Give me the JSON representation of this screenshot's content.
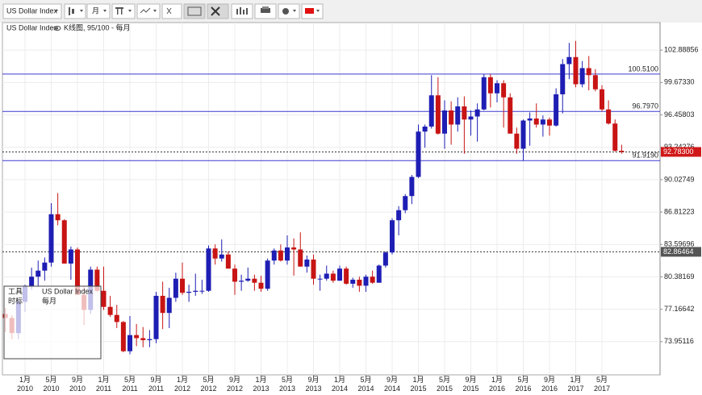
{
  "toolbar": {
    "symbol": "US Dollar Index",
    "period": "月"
  },
  "header": {
    "symbol": "US Dollar Index",
    "info": "K线图, 95/100 - 每月"
  },
  "overlay": {
    "tools": "工具",
    "timescale": "时标",
    "symbol": "US Dollar Index",
    "period": "每月"
  },
  "chart_data": {
    "type": "candlestick",
    "categories": [
      null,
      null,
      null,
      "1月\n2010",
      null,
      null,
      null,
      "5月\n2010",
      null,
      null,
      null,
      "9月\n2010",
      null,
      null,
      null,
      "1月\n2011",
      null,
      null,
      null,
      "5月\n2011",
      null,
      null,
      null,
      "9月\n2011",
      null,
      null,
      null,
      "1月\n2012",
      null,
      null,
      null,
      "5月\n2012",
      null,
      null,
      null,
      "9月\n2012",
      null,
      null,
      null,
      "1月\n2013",
      null,
      null,
      null,
      "5月\n2013",
      null,
      null,
      null,
      "9月\n2013",
      null,
      null,
      null,
      "1月\n2014",
      null,
      null,
      null,
      "5月\n2014",
      null,
      null,
      null,
      "9月\n2014",
      null,
      null,
      null,
      "1月\n2015",
      null,
      null,
      null,
      "5月\n2015",
      null,
      null,
      null,
      "9月\n2015",
      null,
      null,
      null,
      "1月\n2016",
      null,
      null,
      null,
      "5月\n2016",
      null,
      null,
      null,
      "9月\n2016",
      null,
      null,
      null,
      "1月\n2017",
      null,
      null,
      null,
      "5月\n2017",
      null,
      null,
      null
    ],
    "open": [
      76.7,
      76.3,
      74.8,
      77.9,
      79.5,
      80.4,
      81.0,
      81.8,
      86.6,
      86.0,
      81.7,
      83.1,
      78.6,
      77.1,
      81.1,
      79.0,
      77.4,
      76.6,
      75.9,
      73.0,
      74.6,
      74.3,
      74.1,
      74.2,
      78.5,
      76.8,
      78.3,
      80.2,
      78.8,
      78.9,
      79.0,
      79.0,
      83.2,
      82.2,
      82.6,
      81.2,
      79.9,
      80.0,
      80.2,
      79.8,
      79.2,
      82.0,
      83.0,
      82.0,
      83.3,
      83.1,
      81.4,
      82.1,
      80.2,
      80.2,
      80.7,
      80.0,
      81.2,
      79.7,
      80.1,
      79.5,
      80.4,
      79.8,
      81.5,
      82.8,
      86.0,
      87.0,
      88.4,
      90.3,
      94.8,
      95.3,
      98.4,
      94.6,
      96.9,
      95.5,
      97.3,
      96.0,
      96.3,
      97.0,
      100.2,
      98.6,
      99.6,
      98.2,
      94.6,
      93.1,
      95.9,
      96.1,
      95.5,
      96.0,
      95.4,
      98.5,
      101.5,
      102.2,
      99.5,
      101.1,
      100.4,
      99.0,
      97.0,
      95.6,
      92.9
    ],
    "high": [
      77.3,
      76.6,
      78.2,
      79.6,
      81.3,
      82.0,
      82.3,
      87.7,
      88.7,
      86.1,
      83.4,
      83.3,
      79.4,
      81.4,
      81.4,
      81.4,
      78.5,
      77.6,
      76.0,
      76.5,
      75.7,
      75.4,
      75.1,
      78.9,
      79.9,
      79.3,
      80.8,
      81.8,
      79.6,
      80.7,
      80.1,
      83.5,
      83.6,
      84.1,
      82.9,
      81.6,
      80.6,
      81.3,
      80.6,
      80.5,
      82.2,
      83.2,
      83.6,
      84.5,
      84.2,
      84.8,
      82.5,
      82.6,
      80.6,
      81.5,
      81.0,
      81.5,
      81.4,
      80.3,
      80.4,
      80.6,
      81.0,
      81.6,
      82.9,
      86.2,
      87.4,
      88.6,
      90.5,
      95.5,
      95.5,
      100.4,
      100.2,
      97.9,
      97.8,
      98.2,
      98.3,
      96.9,
      97.6,
      100.5,
      100.5,
      99.9,
      99.9,
      98.6,
      95.2,
      96.0,
      96.7,
      97.6,
      96.4,
      96.2,
      99.1,
      102.0,
      103.6,
      103.8,
      101.8,
      102.3,
      101.0,
      99.4,
      97.9,
      96.0,
      93.5
    ],
    "low": [
      74.9,
      74.2,
      74.2,
      76.9,
      79.1,
      79.5,
      80.0,
      81.4,
      85.5,
      81.7,
      80.1,
      78.6,
      75.6,
      76.7,
      78.9,
      77.1,
      76.4,
      75.3,
      72.9,
      72.7,
      73.5,
      73.4,
      73.4,
      73.8,
      75.2,
      75.3,
      77.9,
      78.6,
      77.9,
      78.5,
      78.7,
      78.9,
      81.6,
      81.9,
      81.2,
      78.6,
      79.0,
      79.9,
      79.0,
      78.9,
      79.0,
      81.6,
      81.9,
      81.6,
      80.5,
      81.4,
      80.8,
      79.6,
      79.0,
      80.0,
      79.8,
      80.0,
      79.6,
      79.3,
      78.9,
      78.9,
      79.7,
      79.8,
      81.3,
      82.6,
      84.5,
      86.7,
      87.6,
      90.2,
      93.2,
      95.1,
      94.5,
      93.1,
      93.5,
      94.8,
      92.6,
      94.4,
      93.8,
      96.9,
      97.2,
      97.7,
      95.2,
      94.6,
      92.6,
      91.9,
      93.4,
      95.2,
      94.3,
      94.4,
      95.3,
      96.6,
      100.0,
      99.2,
      99.2,
      98.9,
      98.8,
      96.8,
      95.5,
      92.8,
      92.6
    ],
    "close": [
      76.3,
      74.8,
      77.9,
      79.5,
      80.4,
      81.0,
      81.8,
      86.6,
      86.0,
      81.7,
      83.1,
      78.6,
      77.1,
      81.1,
      79.0,
      77.4,
      76.6,
      75.9,
      73.0,
      74.6,
      74.3,
      74.1,
      74.2,
      78.5,
      76.8,
      78.3,
      80.2,
      78.8,
      78.9,
      79.0,
      79.0,
      83.2,
      82.2,
      82.6,
      81.2,
      79.9,
      80.0,
      80.2,
      79.8,
      79.2,
      82.0,
      83.0,
      82.0,
      83.3,
      83.1,
      81.4,
      82.1,
      80.2,
      80.2,
      80.7,
      80.0,
      81.2,
      79.7,
      80.1,
      79.5,
      80.4,
      79.8,
      81.5,
      82.8,
      86.0,
      87.0,
      88.4,
      90.3,
      94.8,
      95.3,
      98.4,
      94.6,
      96.9,
      95.5,
      97.3,
      96.0,
      96.3,
      97.0,
      100.2,
      98.6,
      99.6,
      98.2,
      94.6,
      93.1,
      95.9,
      96.1,
      95.5,
      96.0,
      95.4,
      98.5,
      101.5,
      102.2,
      99.5,
      101.1,
      100.4,
      99.0,
      97.0,
      95.6,
      92.9,
      92.783
    ],
    "colors": {
      "up": "#1e1eb4",
      "down": "#c81414"
    },
    "ylim": [
      70.655,
      105.622
    ],
    "yticks": [
      73.95116,
      77.16642,
      80.38169,
      83.59696,
      86.81223,
      90.02749,
      93.24276,
      96.45803,
      {
        "value": 99.6733,
        "label": "99.67330"
      },
      102.88856
    ],
    "grid": true,
    "price_lines": [
      {
        "value": 100.51,
        "label": "100.5100",
        "style": "solid",
        "color": "#3a3ad0"
      },
      {
        "value": 96.797,
        "label": "96.7970",
        "style": "solid",
        "color": "#3a3ad0"
      },
      {
        "value": 91.919,
        "label": "91.9190",
        "style": "solid",
        "color": "#3a3ad0"
      },
      {
        "value": 82.86464,
        "style": "dotted",
        "color": "#333333",
        "badge": "#555555"
      },
      {
        "value": 92.783,
        "label": "92.78300",
        "style": "dotted",
        "color": "#333333",
        "badge": "#d01818"
      }
    ]
  }
}
